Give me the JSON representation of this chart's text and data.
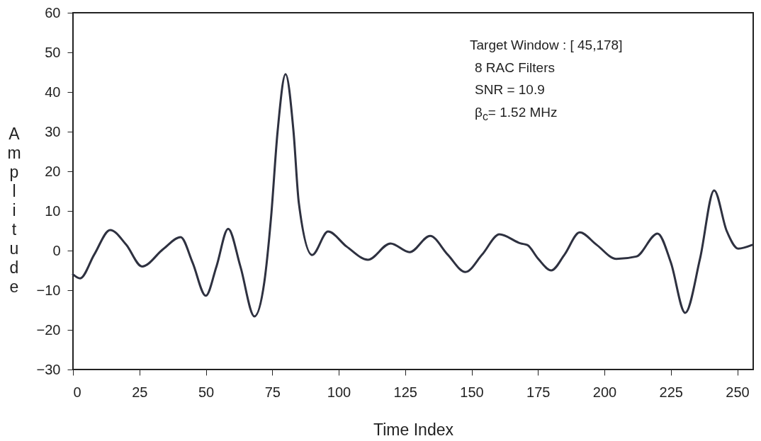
{
  "chart_data": {
    "type": "line",
    "xlabel": "Time Index",
    "ylabel": "Amplitude",
    "annotations": [
      "Target Window : [ 45,178]",
      "8 RAC Filters",
      "SNR = 10.9",
      "β$_{c}$= 1.52 MHz"
    ],
    "x": [
      0,
      2.7,
      8,
      14,
      20,
      26,
      34,
      40.5,
      45,
      50,
      54,
      58.4,
      63,
      68.3,
      72,
      74.5,
      77,
      80,
      83,
      85,
      90,
      96,
      103,
      111,
      119.5,
      126.7,
      134.4,
      141,
      147.7,
      154,
      160.5,
      168.5,
      171,
      175,
      180,
      185,
      190.7,
      197,
      204.5,
      212,
      220,
      225,
      230.4,
      236,
      241.3,
      246,
      250.4,
      255.5
    ],
    "series": [
      {
        "color": "#2e3140",
        "values": [
          -6,
          -7,
          -1,
          5.2,
          1.5,
          -4,
          0.4,
          3.4,
          -3,
          -11.4,
          -4,
          5.5,
          -4,
          -16.6,
          -8,
          8,
          30,
          44.5,
          30,
          12,
          -1.1,
          4.8,
          1,
          -2.3,
          1.8,
          -0.4,
          3.7,
          -1,
          -5.4,
          -1,
          4.1,
          1.8,
          1.4,
          -2,
          -5,
          -1,
          4.6,
          1.5,
          -2.1,
          -1.5,
          4.3,
          -3,
          -15.7,
          -2,
          15.2,
          5,
          0.5,
          1.4
        ]
      }
    ],
    "xlim": [
      0,
      256
    ],
    "xticks": [
      0,
      25,
      50,
      75,
      100,
      125,
      150,
      175,
      200,
      225,
      250
    ],
    "ylim": [
      -30,
      60
    ],
    "yticks": [
      -30,
      -20,
      -10,
      0,
      10,
      20,
      30,
      40,
      50,
      60
    ],
    "grid": false,
    "marker": "none",
    "line_style": "solid"
  }
}
